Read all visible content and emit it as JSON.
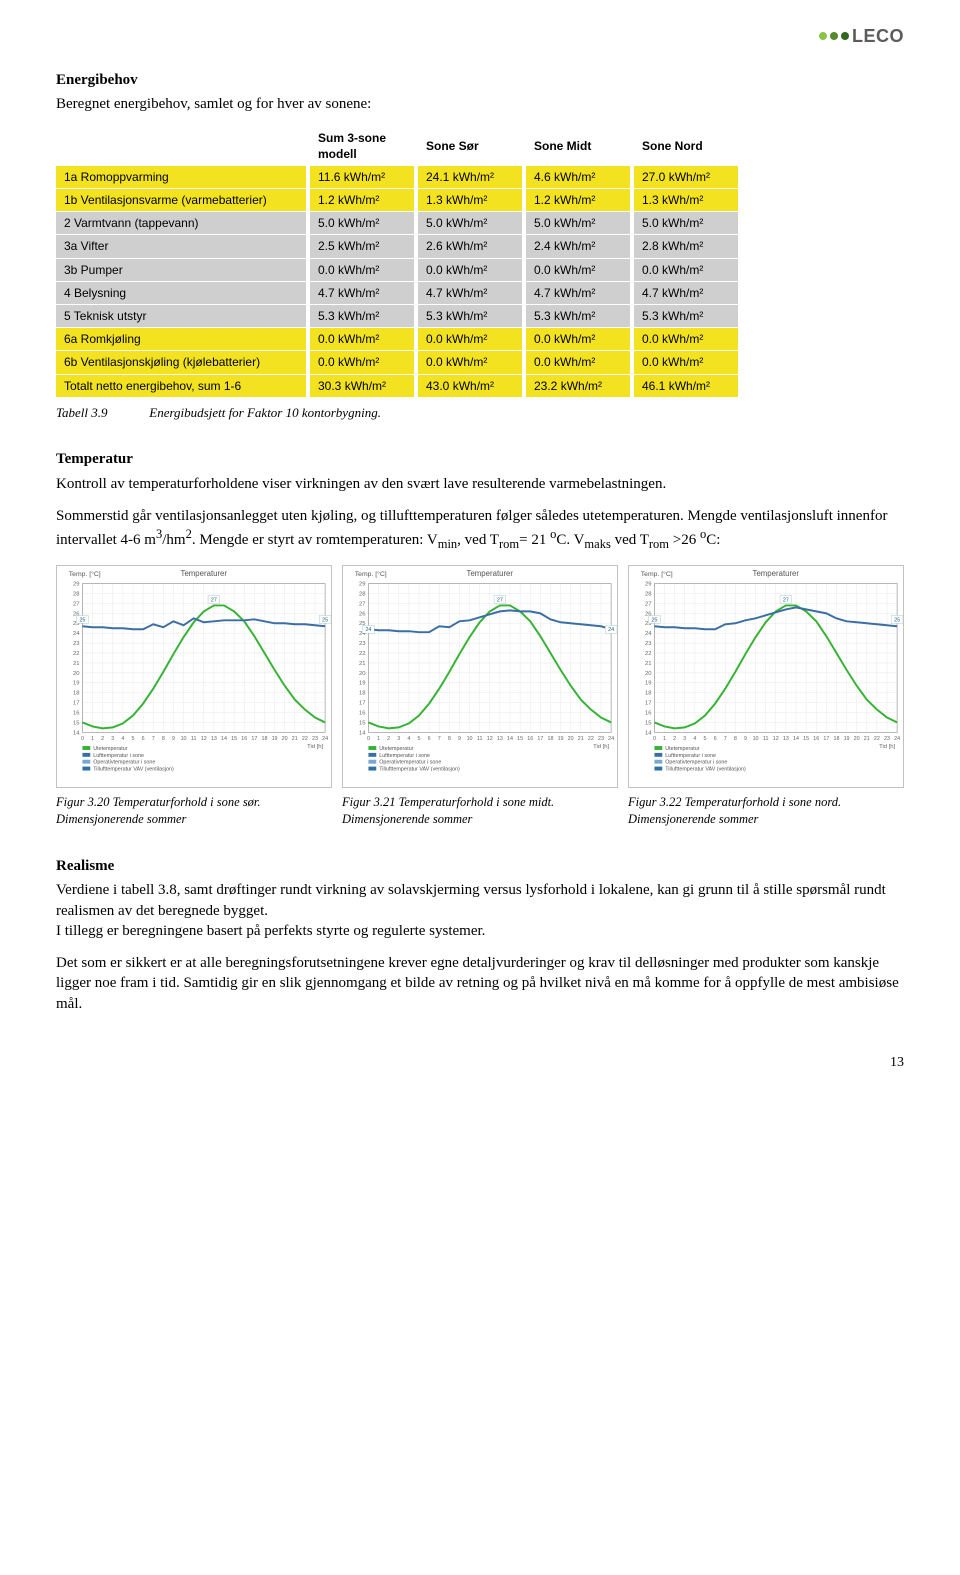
{
  "logo_text": "LECO",
  "h_energibehov": "Energibehov",
  "p_energibehov": "Beregnet energibehov, samlet og for hver av sonene:",
  "table": {
    "headers": [
      "",
      "Sum 3-sone modell",
      "Sone Sør",
      "Sone Midt",
      "Sone Nord"
    ],
    "rows": [
      {
        "hl": true,
        "cells": [
          "1a Romoppvarming",
          "11.6 kWh/m²",
          "24.1 kWh/m²",
          "4.6 kWh/m²",
          "27.0 kWh/m²"
        ]
      },
      {
        "hl": true,
        "cells": [
          "1b Ventilasjonsvarme (varmebatterier)",
          "1.2 kWh/m²",
          "1.3 kWh/m²",
          "1.2 kWh/m²",
          "1.3 kWh/m²"
        ]
      },
      {
        "hl": false,
        "cells": [
          "2   Varmtvann (tappevann)",
          "5.0 kWh/m²",
          "5.0 kWh/m²",
          "5.0 kWh/m²",
          "5.0 kWh/m²"
        ]
      },
      {
        "hl": false,
        "cells": [
          "3a Vifter",
          "2.5 kWh/m²",
          "2.6 kWh/m²",
          "2.4 kWh/m²",
          "2.8 kWh/m²"
        ]
      },
      {
        "hl": false,
        "cells": [
          "3b Pumper",
          "0.0 kWh/m²",
          "0.0 kWh/m²",
          "0.0 kWh/m²",
          "0.0 kWh/m²"
        ]
      },
      {
        "hl": false,
        "cells": [
          "4   Belysning",
          "4.7 kWh/m²",
          "4.7 kWh/m²",
          "4.7 kWh/m²",
          "4.7 kWh/m²"
        ]
      },
      {
        "hl": false,
        "cells": [
          "5   Teknisk utstyr",
          "5.3 kWh/m²",
          "5.3 kWh/m²",
          "5.3 kWh/m²",
          "5.3 kWh/m²"
        ]
      },
      {
        "hl": true,
        "cells": [
          "6a Romkjøling",
          "0.0 kWh/m²",
          "0.0 kWh/m²",
          "0.0 kWh/m²",
          "0.0 kWh/m²"
        ]
      },
      {
        "hl": true,
        "cells": [
          "6b Ventilasjonskjøling (kjølebatterier)",
          "0.0 kWh/m²",
          "0.0 kWh/m²",
          "0.0 kWh/m²",
          "0.0 kWh/m²"
        ]
      },
      {
        "hl": true,
        "cells": [
          "Totalt netto energibehov, sum 1-6",
          "30.3 kWh/m²",
          "43.0 kWh/m²",
          "23.2 kWh/m²",
          "46.1 kWh/m²"
        ]
      }
    ]
  },
  "tabcap_label": "Tabell 3.9",
  "tabcap_text": "Energibudsjett for Faktor 10  kontorbygning.",
  "h_temp": "Temperatur",
  "p_temp1": "Kontroll av temperaturforholdene viser virkningen av den svært lave resulterende varmebelastningen.",
  "p_temp2_a": "Sommerstid går ventilasjonsanlegget uten kjøling, og tillufttemperaturen følger således utetemperaturen. Mengde ventilasjonsluft innenfor intervallet 4-6 m",
  "p_temp2_b": "/hm",
  "p_temp2_c": ". Mengde er styrt av romtemperaturen: V",
  "p_temp2_d": ", ved T",
  "p_temp2_e": "= 21 ",
  "p_temp2_f": "C. V",
  "p_temp2_g": " ved T",
  "p_temp2_h": " >26 ",
  "p_temp2_i": "C:",
  "charts": {
    "shared": {
      "title": "Temperaturer",
      "y_label": "Temp. [°C]",
      "x_label": "Tid [h]",
      "y_min": 14,
      "y_max": 29,
      "y_step": 1,
      "x_min": 0,
      "x_max": 24,
      "x_step": 1,
      "grid_color": "#e7e7e7",
      "room_color": "#3b6ea5",
      "room_width": 2,
      "ute_color": "#36b234",
      "ute_width": 2,
      "legend": [
        "Utetemperatur",
        "Lufttemperatur i sone",
        "Operativtemperatur i sone",
        "Tillufttemperatur VAV (ventilasjon)"
      ],
      "legend_colors": [
        "#36b234",
        "#3b6ea5",
        "#7aa6d6",
        "#2e6fa6"
      ]
    },
    "series": [
      {
        "room": [
          24.7,
          24.6,
          24.6,
          24.5,
          24.5,
          24.4,
          24.4,
          24.9,
          24.6,
          25.2,
          24.8,
          25.5,
          25.1,
          25.2,
          25.3,
          25.3,
          25.3,
          25.4,
          25.2,
          25.0,
          25.0,
          24.9,
          24.9,
          24.8,
          24.7
        ],
        "ute": [
          15.0,
          14.6,
          14.4,
          14.5,
          14.9,
          15.7,
          16.9,
          18.4,
          20.1,
          21.9,
          23.6,
          25.1,
          26.2,
          26.8,
          26.8,
          26.2,
          25.2,
          23.7,
          22.0,
          20.3,
          18.7,
          17.3,
          16.3,
          15.5,
          15.0
        ],
        "markers": {
          "color": "#1e6091",
          "x": [
            0,
            13,
            24
          ],
          "y": [
            25,
            27,
            25
          ]
        }
      },
      {
        "room": [
          24.4,
          24.3,
          24.3,
          24.2,
          24.2,
          24.1,
          24.1,
          24.7,
          24.6,
          25.2,
          25.3,
          25.6,
          25.9,
          26.2,
          26.3,
          26.2,
          26.2,
          26.0,
          25.4,
          25.1,
          25.0,
          24.9,
          24.8,
          24.7,
          24.4
        ],
        "ute": [
          15.0,
          14.6,
          14.4,
          14.5,
          14.9,
          15.7,
          16.9,
          18.4,
          20.1,
          21.9,
          23.6,
          25.1,
          26.2,
          26.8,
          26.8,
          26.2,
          25.2,
          23.7,
          22.0,
          20.3,
          18.7,
          17.3,
          16.3,
          15.5,
          15.0
        ],
        "markers": {
          "color": "#1e6091",
          "x": [
            0,
            13,
            24
          ],
          "y": [
            24,
            27,
            24
          ]
        }
      },
      {
        "room": [
          24.7,
          24.6,
          24.6,
          24.5,
          24.5,
          24.4,
          24.4,
          24.9,
          25.0,
          25.3,
          25.5,
          25.8,
          26.1,
          26.4,
          26.6,
          26.4,
          26.2,
          26.0,
          25.5,
          25.2,
          25.1,
          25.0,
          24.9,
          24.8,
          24.7
        ],
        "ute": [
          15.0,
          14.6,
          14.4,
          14.5,
          14.9,
          15.7,
          16.9,
          18.4,
          20.1,
          21.9,
          23.6,
          25.1,
          26.2,
          26.8,
          26.8,
          26.2,
          25.2,
          23.7,
          22.0,
          20.3,
          18.7,
          17.3,
          16.3,
          15.5,
          15.0
        ],
        "markers": {
          "color": "#1e6091",
          "x": [
            0,
            13,
            24
          ],
          "y": [
            25,
            27,
            25
          ]
        }
      }
    ]
  },
  "fig1_a": "Figur 3.20   Temperaturforhold i sone sør. Dimensjonerende sommer",
  "fig2_a": "Figur 3.21   Temperaturforhold i sone midt. Dimensjonerende sommer",
  "fig3_a": "Figur 3.22   Temperaturforhold i sone nord. Dimensjonerende sommer",
  "h_real": "Realisme",
  "p_real1": "Verdiene i tabell 3.8, samt drøftinger rundt virkning av solavskjerming versus lysforhold i lokalene, kan gi grunn til å stille spørsmål rundt realismen av det beregnede bygget.",
  "p_real2": "I tillegg er beregningene basert på perfekts styrte og regulerte systemer.",
  "p_real3": "Det som er sikkert er at alle beregningsforutsetningene krever egne detaljvurderinger og krav til delløsninger med produkter som kanskje ligger noe fram i tid. Samtidig gir en slik gjennomgang et bilde av retning og på hvilket nivå en må komme for å oppfylle de mest ambisiøse mål.",
  "pagenum": "13"
}
